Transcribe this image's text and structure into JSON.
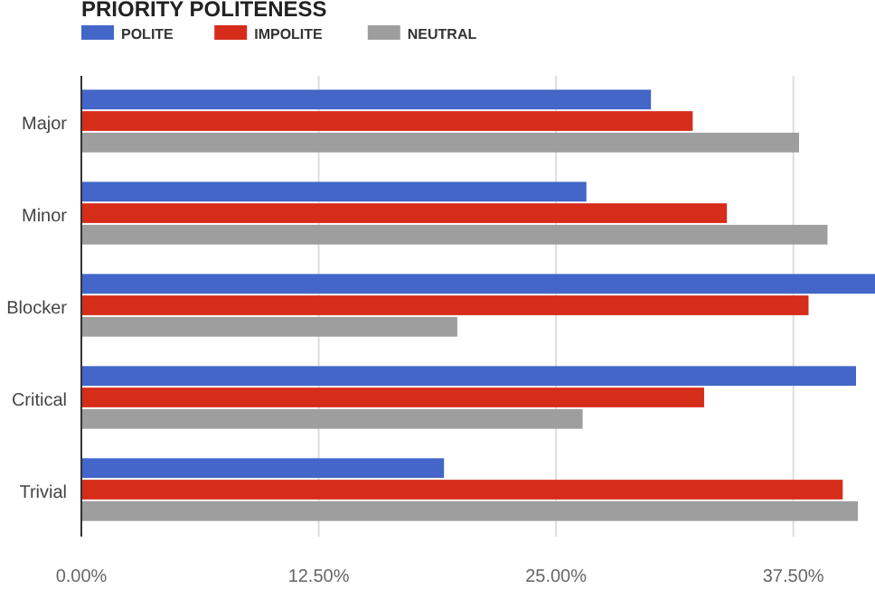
{
  "chart_data": {
    "type": "bar",
    "orientation": "horizontal",
    "title": "PRIORITY POLITENESS",
    "categories": [
      "Major",
      "Minor",
      "Blocker",
      "Critical",
      "Trivial"
    ],
    "series": [
      {
        "name": "POLITE",
        "color": "#4366c8",
        "values": [
          30.0,
          26.6,
          41.8,
          40.8,
          19.1
        ]
      },
      {
        "name": "IMPOLITE",
        "color": "#d62c1a",
        "values": [
          32.2,
          34.0,
          38.3,
          32.8,
          40.1
        ]
      },
      {
        "name": "NEUTRAL",
        "color": "#9e9e9e",
        "values": [
          37.8,
          39.3,
          19.8,
          26.4,
          40.9
        ]
      }
    ],
    "xlim": [
      0,
      41.8
    ],
    "xticks": [
      {
        "value": 0,
        "label": "0.00%"
      },
      {
        "value": 12.5,
        "label": "12.50%"
      },
      {
        "value": 25,
        "label": "25.00%"
      },
      {
        "value": 37.5,
        "label": "37.50%"
      }
    ],
    "grid": "x",
    "legend": "top left"
  }
}
